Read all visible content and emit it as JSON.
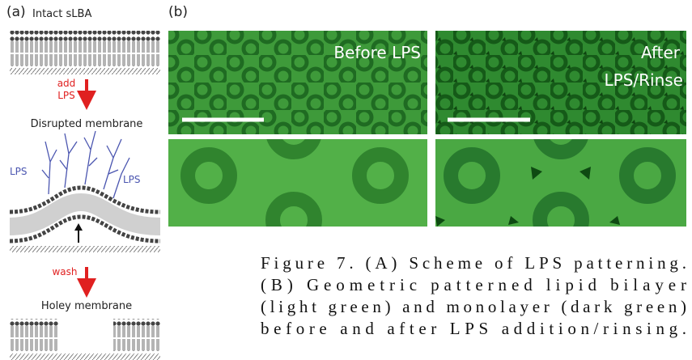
{
  "panel_a": {
    "label": "(a)",
    "title": "Intact sLBA",
    "step1_verb": "add",
    "step1_agent": "LPS",
    "state2": "Disrupted membrane",
    "lps_labels": [
      "LPS",
      "LPS"
    ],
    "step2_verb": "wash",
    "state3": "Holey membrane"
  },
  "panel_b": {
    "label": "(b)",
    "before": "Before LPS",
    "after": [
      "After",
      "LPS/Rinse"
    ]
  },
  "caption": [
    "Figure 7. (A) Scheme of LPS patterning.",
    "(B) Geometric patterned lipid bilayer",
    "(light green) and monolayer (dark green)",
    "before and after LPS addition/rinsing."
  ]
}
